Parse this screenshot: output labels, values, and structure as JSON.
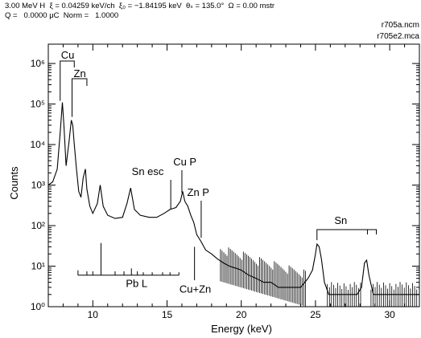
{
  "header": {
    "line1": "3.00 MeV H  ξ = 0.04259 keV/ch  ξ₀ = −1.84195 keV  θₛ = 135.0°  Ω = 0.00 mstr",
    "line2": "Q =   0.0000 μC  Norm =   1.0000",
    "file1": "r705a.ncm",
    "file2": "r705e2.mca"
  },
  "chart_data": {
    "type": "line",
    "title": "",
    "xlabel": "Energy (keV)",
    "ylabel": "Counts",
    "xlim": [
      7,
      32
    ],
    "ylim": [
      1,
      3000000
    ],
    "yscale": "log",
    "grid": false,
    "x_ticks": [
      10,
      15,
      20,
      25,
      30
    ],
    "x_tick_labels": [
      "10",
      "15",
      "20",
      "25",
      "30"
    ],
    "y_ticks": [
      1,
      10,
      100,
      1000,
      10000,
      100000,
      1000000
    ],
    "y_tick_labels": [
      "10⁰",
      "10¹",
      "10²",
      "10³",
      "10⁴",
      "10⁵",
      "10⁶"
    ],
    "series": [
      {
        "x": [
          7.0,
          7.3,
          7.6,
          7.8,
          7.95,
          8.05,
          8.2,
          8.4,
          8.55,
          8.65,
          8.75,
          8.9,
          9.05,
          9.2,
          9.35,
          9.5,
          9.6,
          9.8,
          10.0,
          10.3,
          10.5,
          10.7,
          11.0,
          11.5,
          12.0,
          12.3,
          12.55,
          12.8,
          13.2,
          13.8,
          14.3,
          14.8,
          15.2,
          15.6,
          15.9,
          16.05,
          16.2,
          16.4,
          16.6,
          16.8,
          17.0,
          17.3,
          17.6,
          18.0,
          18.4,
          18.8,
          19.2,
          19.6,
          20.0,
          20.5,
          21.0,
          21.5,
          22.0,
          22.5,
          23.0,
          23.5,
          24.0,
          24.5,
          24.8,
          25.0,
          25.1,
          25.25,
          25.4,
          25.6,
          25.9,
          26.3,
          26.8,
          27.3,
          27.8,
          28.1,
          28.3,
          28.45,
          28.6,
          28.9,
          29.3,
          29.8,
          30.3,
          30.8,
          31.3,
          31.8,
          32.0
        ],
        "y": [
          1000,
          1200,
          2500,
          20000,
          110000,
          30000,
          3000,
          12000,
          40000,
          30000,
          10000,
          2500,
          700,
          500,
          1500,
          2500,
          800,
          300,
          200,
          350,
          1000,
          300,
          180,
          150,
          160,
          350,
          850,
          250,
          180,
          160,
          160,
          200,
          250,
          280,
          400,
          700,
          400,
          300,
          180,
          120,
          60,
          40,
          25,
          20,
          15,
          12,
          10,
          9,
          8,
          6,
          5,
          4,
          4,
          3,
          3,
          3,
          3,
          5,
          8,
          20,
          35,
          30,
          15,
          4,
          2,
          2,
          2,
          2,
          2,
          3,
          12,
          14,
          6,
          2,
          2,
          2,
          2,
          2,
          2,
          2,
          2
        ]
      }
    ],
    "annotations": [
      {
        "id": "cu",
        "text": "Cu"
      },
      {
        "id": "zn",
        "text": "Zn"
      },
      {
        "id": "sn_esc",
        "text": "Sn  esc"
      },
      {
        "id": "cu_p",
        "text": "Cu  P"
      },
      {
        "id": "zn_p",
        "text": "Zn  P"
      },
      {
        "id": "sn",
        "text": "Sn"
      },
      {
        "id": "pb_l",
        "text": "Pb  L"
      },
      {
        "id": "cu_zn",
        "text": "Cu+Zn"
      }
    ]
  }
}
